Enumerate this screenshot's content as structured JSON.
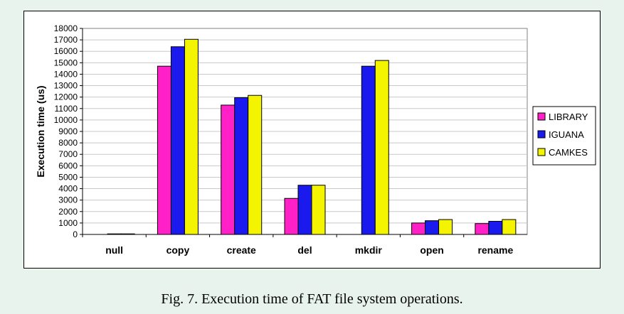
{
  "chart_data": {
    "type": "bar",
    "categories": [
      "null",
      "copy",
      "create",
      "del",
      "mkdir",
      "open",
      "rename"
    ],
    "series": [
      {
        "name": "LIBRARY",
        "color": "#ff20c8",
        "values": [
          null,
          14700,
          11300,
          3150,
          null,
          1000,
          950
        ]
      },
      {
        "name": "IGUANA",
        "color": "#1a1aee",
        "values": [
          50,
          16400,
          11950,
          4300,
          14700,
          1200,
          1150
        ]
      },
      {
        "name": "CAMKES",
        "color": "#f4f400",
        "values": [
          50,
          17050,
          12150,
          4300,
          15200,
          1300,
          1300
        ]
      }
    ],
    "ylabel": "Execution time (us)",
    "xlabel": "",
    "ylim": [
      0,
      18000
    ],
    "yticks": [
      "0",
      "1000",
      "2000",
      "3000",
      "4000",
      "5000",
      "6000",
      "7000",
      "8000",
      "9000",
      "10000",
      "11000",
      "12000",
      "13000",
      "14000",
      "15000",
      "16000",
      "17000",
      "18000"
    ],
    "grid": true,
    "legend_position": "right"
  },
  "caption": "Fig. 7. Execution time of FAT file system operations."
}
